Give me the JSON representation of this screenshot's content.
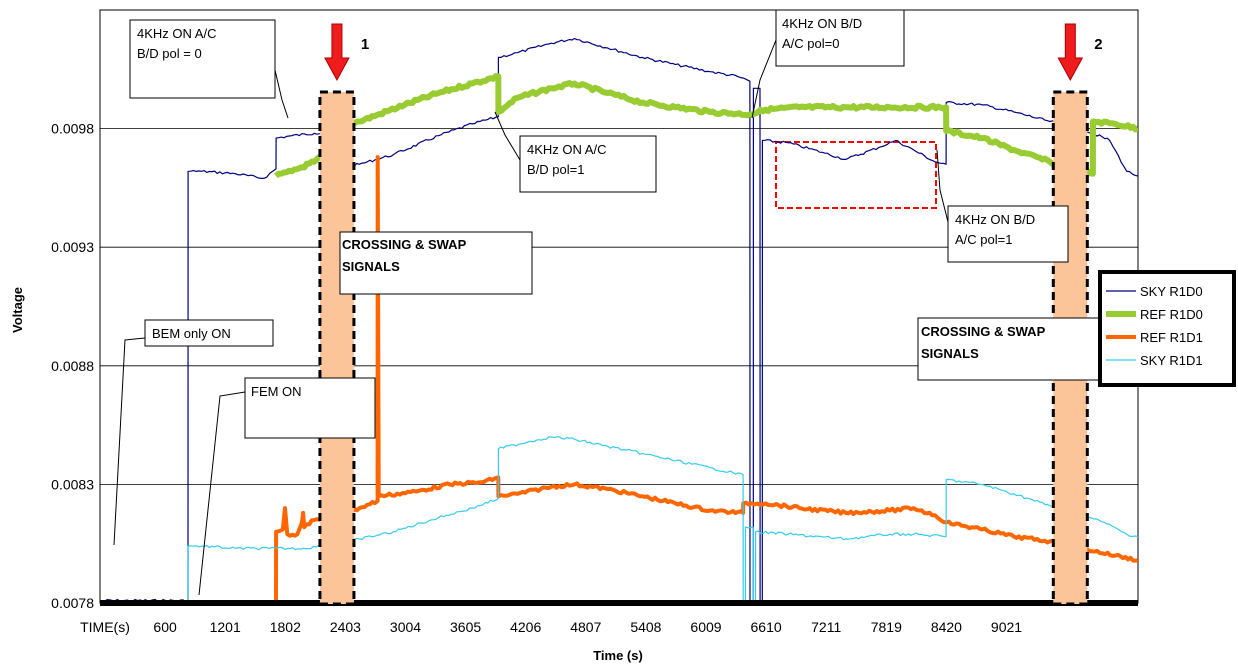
{
  "chart_data": {
    "type": "line",
    "title": "",
    "xlabel": "Time (s)",
    "ylabel": "Voltage",
    "xlim": [
      0,
      9200
    ],
    "ylim": [
      0.0078,
      0.0103
    ],
    "x_ticks": [
      "TIME(s)",
      "600",
      "1201",
      "1802",
      "2403",
      "3004",
      "3605",
      "4206",
      "4807",
      "5408",
      "6009",
      "6610",
      "7211",
      "7819",
      "8420",
      "9021"
    ],
    "y_ticks": [
      0.0078,
      0.0083,
      0.0088,
      0.0093,
      0.0098
    ],
    "y_tick_labels": [
      "0.0078",
      "0.0083",
      "0.0088",
      "0.0093",
      "0.0098"
    ],
    "grid": "horizontal",
    "legend_position": "right",
    "series": [
      {
        "name": "SKY R1D0",
        "color": "#000080",
        "width": 1.2,
        "points": [
          [
            0,
            0.00781
          ],
          [
            780,
            0.00781
          ],
          [
            781,
            0.00962
          ],
          [
            900,
            0.00962
          ],
          [
            1200,
            0.00961
          ],
          [
            1450,
            0.00959
          ],
          [
            1560,
            0.00963
          ],
          [
            1561,
            0.00976
          ],
          [
            1700,
            0.00977
          ],
          [
            1900,
            0.00978
          ],
          [
            2100,
            0.00979
          ],
          [
            2101,
            0.00963
          ],
          [
            2300,
            0.00965
          ],
          [
            2600,
            0.00969
          ],
          [
            3000,
            0.00977
          ],
          [
            3300,
            0.00982
          ],
          [
            3530,
            0.00985
          ],
          [
            3531,
            0.0101
          ],
          [
            3700,
            0.01012
          ],
          [
            4000,
            0.01016
          ],
          [
            4206,
            0.01018
          ],
          [
            4500,
            0.01014
          ],
          [
            4807,
            0.0101
          ],
          [
            5100,
            0.01007
          ],
          [
            5408,
            0.01004
          ],
          [
            5650,
            0.01002
          ],
          [
            5760,
            0.01
          ],
          [
            5761,
            0.00781
          ],
          [
            5790,
            0.00781
          ],
          [
            5791,
            0.00997
          ],
          [
            5850,
            0.00997
          ],
          [
            5851,
            0.00781
          ],
          [
            5870,
            0.00781
          ],
          [
            5871,
            0.00975
          ],
          [
            6100,
            0.00974
          ],
          [
            6400,
            0.0097
          ],
          [
            6610,
            0.00967
          ],
          [
            6900,
            0.00972
          ],
          [
            7050,
            0.00975
          ],
          [
            7211,
            0.00971
          ],
          [
            7400,
            0.00966
          ],
          [
            7499,
            0.00965
          ],
          [
            7500,
            0.00991
          ],
          [
            7819,
            0.0099
          ],
          [
            8100,
            0.00987
          ],
          [
            8420,
            0.00983
          ],
          [
            8700,
            0.0098
          ],
          [
            8950,
            0.00975
          ],
          [
            9100,
            0.00962
          ],
          [
            9200,
            0.0096
          ]
        ]
      },
      {
        "name": "REF R1D0",
        "color": "#99cc33",
        "width": 6,
        "points": [
          [
            1560,
            0.0096
          ],
          [
            1700,
            0.00962
          ],
          [
            1900,
            0.00966
          ],
          [
            2050,
            0.00971
          ],
          [
            2100,
            0.00981
          ],
          [
            2300,
            0.00983
          ],
          [
            2700,
            0.0099
          ],
          [
            3000,
            0.00995
          ],
          [
            3300,
            0.00999
          ],
          [
            3530,
            0.01002
          ],
          [
            3531,
            0.00987
          ],
          [
            3700,
            0.00993
          ],
          [
            4000,
            0.00997
          ],
          [
            4206,
            0.00999
          ],
          [
            4500,
            0.00995
          ],
          [
            4807,
            0.00991
          ],
          [
            5100,
            0.00989
          ],
          [
            5408,
            0.00987
          ],
          [
            5760,
            0.00986
          ],
          [
            5900,
            0.00988
          ],
          [
            6200,
            0.00989
          ],
          [
            6610,
            0.00989
          ],
          [
            7000,
            0.00989
          ],
          [
            7499,
            0.00989
          ],
          [
            7500,
            0.00979
          ],
          [
            7819,
            0.00976
          ],
          [
            8100,
            0.00971
          ],
          [
            8420,
            0.00966
          ],
          [
            8700,
            0.00962
          ],
          [
            8800,
            0.00961
          ],
          [
            8801,
            0.00983
          ],
          [
            9000,
            0.00982
          ],
          [
            9200,
            0.0098
          ]
        ]
      },
      {
        "name": "REF R1D1",
        "color": "#ff6600",
        "width": 4,
        "points": [
          [
            1560,
            0.00781
          ],
          [
            1561,
            0.0081
          ],
          [
            1620,
            0.00811
          ],
          [
            1640,
            0.0082
          ],
          [
            1660,
            0.00809
          ],
          [
            1750,
            0.00809
          ],
          [
            1790,
            0.00814
          ],
          [
            1800,
            0.00818
          ],
          [
            1810,
            0.00812
          ],
          [
            1900,
            0.00815
          ],
          [
            2100,
            0.00816
          ],
          [
            2300,
            0.0082
          ],
          [
            2460,
            0.00823
          ],
          [
            2461,
            0.00968
          ],
          [
            2470,
            0.00825
          ],
          [
            2800,
            0.00827
          ],
          [
            3100,
            0.0083
          ],
          [
            3400,
            0.00831
          ],
          [
            3530,
            0.00833
          ],
          [
            3531,
            0.00825
          ],
          [
            3700,
            0.00826
          ],
          [
            4000,
            0.00829
          ],
          [
            4206,
            0.0083
          ],
          [
            4500,
            0.00828
          ],
          [
            4807,
            0.00825
          ],
          [
            5100,
            0.00822
          ],
          [
            5408,
            0.00819
          ],
          [
            5700,
            0.00818
          ],
          [
            5701,
            0.00822
          ],
          [
            5900,
            0.00822
          ],
          [
            6200,
            0.0082
          ],
          [
            6610,
            0.00818
          ],
          [
            7000,
            0.00819
          ],
          [
            7211,
            0.0082
          ],
          [
            7400,
            0.00817
          ],
          [
            7500,
            0.00814
          ],
          [
            7819,
            0.00811
          ],
          [
            8100,
            0.00808
          ],
          [
            8420,
            0.00806
          ],
          [
            8700,
            0.00803
          ],
          [
            9000,
            0.008
          ],
          [
            9200,
            0.00798
          ]
        ]
      },
      {
        "name": "SKY R1D1",
        "color": "#33ccee",
        "width": 1.2,
        "points": [
          [
            780,
            0.00781
          ],
          [
            781,
            0.00804
          ],
          [
            900,
            0.00804
          ],
          [
            1200,
            0.00803
          ],
          [
            1500,
            0.00803
          ],
          [
            1800,
            0.00803
          ],
          [
            2100,
            0.00805
          ],
          [
            2300,
            0.00807
          ],
          [
            2600,
            0.0081
          ],
          [
            3000,
            0.00816
          ],
          [
            3300,
            0.0082
          ],
          [
            3530,
            0.00824
          ],
          [
            3531,
            0.00845
          ],
          [
            3800,
            0.00848
          ],
          [
            4000,
            0.0085
          ],
          [
            4206,
            0.00849
          ],
          [
            4500,
            0.00846
          ],
          [
            4807,
            0.00843
          ],
          [
            5100,
            0.0084
          ],
          [
            5408,
            0.00837
          ],
          [
            5700,
            0.00834
          ],
          [
            5701,
            0.00781
          ],
          [
            5720,
            0.00781
          ],
          [
            5721,
            0.00812
          ],
          [
            5790,
            0.00812
          ],
          [
            5791,
            0.00781
          ],
          [
            5810,
            0.00781
          ],
          [
            5811,
            0.0081
          ],
          [
            6100,
            0.00809
          ],
          [
            6610,
            0.00807
          ],
          [
            7000,
            0.00809
          ],
          [
            7211,
            0.00809
          ],
          [
            7499,
            0.00808
          ],
          [
            7500,
            0.00832
          ],
          [
            7819,
            0.0083
          ],
          [
            8100,
            0.00826
          ],
          [
            8420,
            0.00821
          ],
          [
            8700,
            0.00817
          ],
          [
            8900,
            0.00814
          ],
          [
            9100,
            0.00809
          ],
          [
            9200,
            0.00808
          ]
        ]
      }
    ],
    "annotations": [
      {
        "id": "ann1",
        "lines": [
          "4KHz ON A/C",
          "B/D pol = 0"
        ]
      },
      {
        "id": "ann2",
        "lines": [
          "4KHz ON B/D",
          "A/C pol=0"
        ]
      },
      {
        "id": "ann3",
        "lines": [
          "4KHz ON A/C",
          "B/D pol=1"
        ]
      },
      {
        "id": "ann4",
        "lines": [
          "4KHz ON B/D",
          "A/C pol=1"
        ]
      },
      {
        "id": "ann5",
        "lines": [
          "BEM only ON"
        ]
      },
      {
        "id": "ann6",
        "lines": [
          "FEM ON"
        ]
      },
      {
        "id": "ann7",
        "lines": [
          "CROSSING & SWAP",
          "SIGNALS"
        ]
      },
      {
        "id": "ann8",
        "lines": [
          "CROSSING & SWAP",
          "SIGNALS"
        ]
      }
    ],
    "markers": [
      {
        "label": "1",
        "x": 2100
      },
      {
        "label": "2",
        "x": 8600
      }
    ]
  }
}
